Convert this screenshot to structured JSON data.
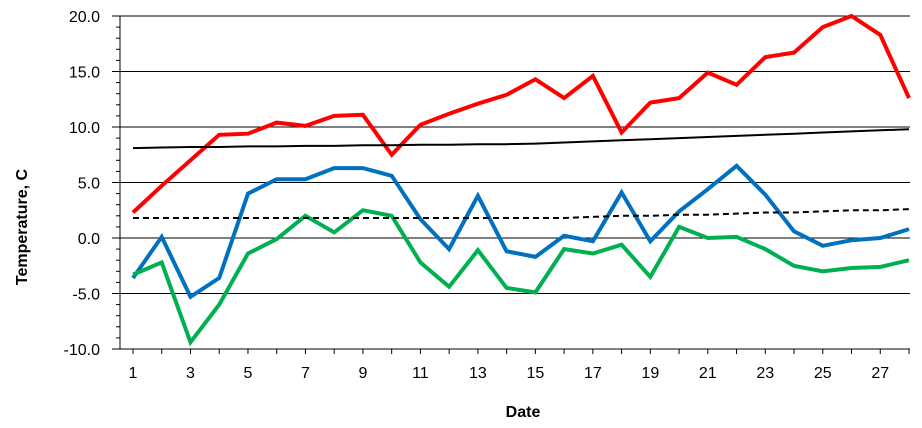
{
  "chart_data": {
    "type": "line",
    "title": "",
    "xlabel": "Date",
    "ylabel": "Temperature, C",
    "xlim": [
      1,
      28
    ],
    "ylim": [
      -10,
      20
    ],
    "x_ticks": [
      1,
      3,
      5,
      7,
      9,
      11,
      13,
      15,
      17,
      19,
      21,
      23,
      25,
      27
    ],
    "y_ticks": [
      -10,
      -5,
      0,
      5,
      10,
      15,
      20
    ],
    "y_tick_labels": [
      "-10.0",
      "-5.0",
      "0.0",
      "5.0",
      "10.0",
      "15.0",
      "20.0"
    ],
    "grid": "horizontal",
    "legend": "none",
    "x": [
      1,
      2,
      3,
      4,
      5,
      6,
      7,
      8,
      9,
      10,
      11,
      12,
      13,
      14,
      15,
      16,
      17,
      18,
      19,
      20,
      21,
      22,
      23,
      24,
      25,
      26,
      27,
      28
    ],
    "series": [
      {
        "color": "#ff0000",
        "style": "solid",
        "width": 4,
        "values": [
          2.3,
          4.7,
          7.0,
          9.3,
          9.4,
          10.4,
          10.1,
          11.0,
          11.1,
          7.5,
          10.2,
          11.2,
          12.1,
          12.9,
          14.3,
          12.6,
          14.6,
          9.5,
          12.2,
          12.6,
          14.9,
          13.8,
          16.3,
          16.7,
          19.0,
          20.0,
          18.3,
          12.6
        ]
      },
      {
        "color": "#0070c0",
        "style": "solid",
        "width": 4,
        "values": [
          -3.6,
          0.1,
          -5.3,
          -3.6,
          4.0,
          5.3,
          5.3,
          6.3,
          6.3,
          5.6,
          1.7,
          -1.0,
          3.8,
          -1.2,
          -1.7,
          0.2,
          -0.3,
          4.1,
          -0.3,
          2.4,
          4.4,
          6.5,
          3.9,
          0.6,
          -0.7,
          -0.2,
          0.0,
          0.8
        ]
      },
      {
        "color": "#00b050",
        "style": "solid",
        "width": 4,
        "values": [
          -3.3,
          -2.2,
          -9.4,
          -6.0,
          -1.4,
          -0.1,
          2.0,
          0.5,
          2.5,
          2.0,
          -2.2,
          -4.4,
          -1.1,
          -4.5,
          -4.9,
          -1.0,
          -1.4,
          -0.6,
          -3.5,
          1.0,
          0.0,
          0.1,
          -1.0,
          -2.5,
          -3.0,
          -2.7,
          -2.6,
          -2.0
        ]
      },
      {
        "color": "#000000",
        "style": "solid",
        "width": 2,
        "values": [
          8.1,
          8.15,
          8.2,
          8.2,
          8.25,
          8.25,
          8.3,
          8.3,
          8.35,
          8.35,
          8.4,
          8.4,
          8.45,
          8.45,
          8.5,
          8.6,
          8.7,
          8.8,
          8.9,
          9.0,
          9.1,
          9.2,
          9.3,
          9.4,
          9.5,
          9.6,
          9.7,
          9.8
        ]
      },
      {
        "color": "#000000",
        "style": "dashed",
        "width": 2,
        "values": [
          1.8,
          1.8,
          1.8,
          1.8,
          1.8,
          1.8,
          1.8,
          1.8,
          1.8,
          1.8,
          1.8,
          1.8,
          1.8,
          1.8,
          1.8,
          1.8,
          1.9,
          2.0,
          2.0,
          2.1,
          2.1,
          2.2,
          2.3,
          2.3,
          2.4,
          2.5,
          2.5,
          2.6
        ]
      }
    ]
  }
}
